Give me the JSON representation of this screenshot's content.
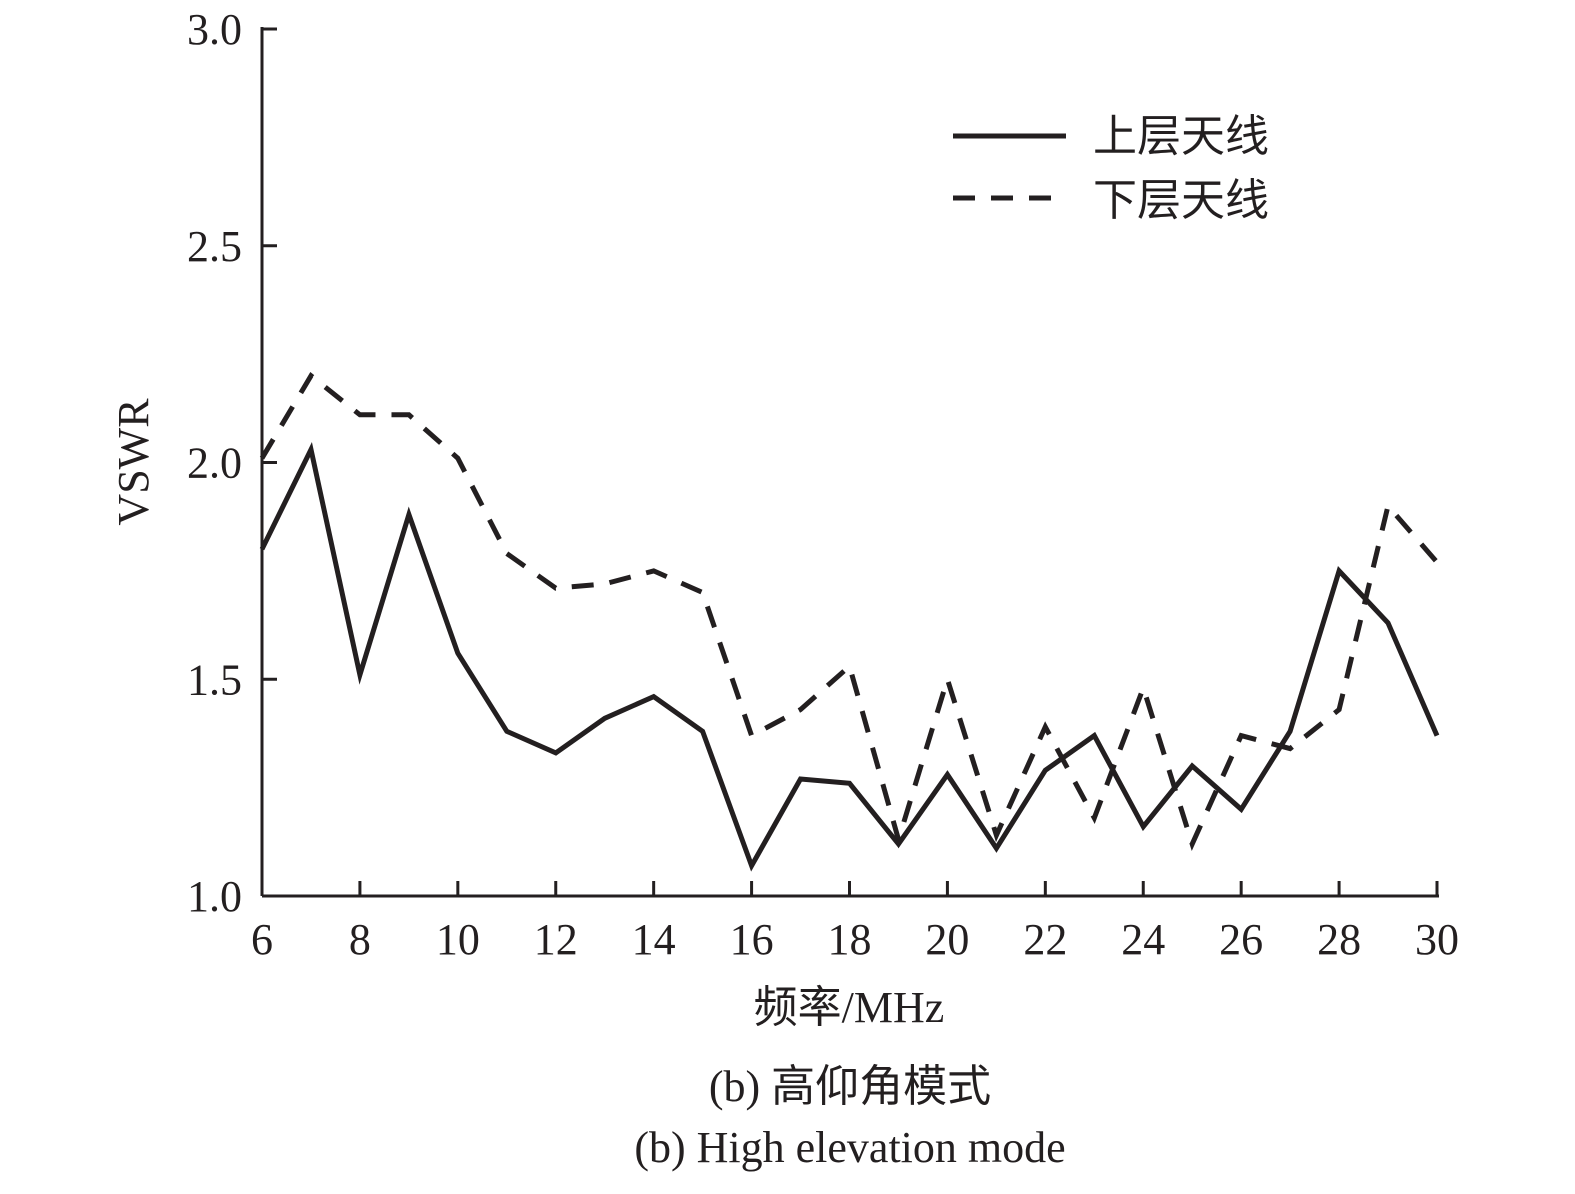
{
  "chart_data": {
    "type": "line",
    "title": "",
    "xlabel": "频率/MHz",
    "ylabel": "VSWR",
    "xlim": [
      6,
      30
    ],
    "ylim": [
      1.0,
      3.0
    ],
    "xticks": [
      6,
      8,
      10,
      12,
      14,
      16,
      18,
      20,
      22,
      24,
      26,
      28,
      30
    ],
    "xtick_labels": [
      "6",
      "8",
      "10",
      "12",
      "14",
      "16",
      "18",
      "20",
      "22",
      "24",
      "26",
      "28",
      "30"
    ],
    "yticks": [
      1.0,
      1.5,
      2.0,
      2.5,
      3.0
    ],
    "ytick_labels": [
      "1.0",
      "1.5",
      "2.0",
      "2.5",
      "3.0"
    ],
    "grid": false,
    "legend_position": "upper right",
    "x": [
      6,
      7,
      8,
      9,
      10,
      11,
      12,
      13,
      14,
      15,
      16,
      17,
      18,
      19,
      20,
      21,
      22,
      23,
      24,
      25,
      26,
      27,
      28,
      29,
      30
    ],
    "series": [
      {
        "name": "上层天线",
        "style": "solid",
        "color": "#231f20",
        "values": [
          1.8,
          2.03,
          1.51,
          1.88,
          1.56,
          1.38,
          1.33,
          1.41,
          1.46,
          1.38,
          1.07,
          1.27,
          1.26,
          1.12,
          1.28,
          1.11,
          1.29,
          1.37,
          1.16,
          1.3,
          1.2,
          1.38,
          1.75,
          1.63,
          1.37
        ]
      },
      {
        "name": "下层天线",
        "style": "dashed",
        "color": "#231f20",
        "values": [
          2.01,
          2.2,
          2.11,
          2.11,
          2.01,
          1.79,
          1.71,
          1.72,
          1.75,
          1.7,
          1.37,
          1.43,
          1.53,
          1.13,
          1.5,
          1.14,
          1.39,
          1.18,
          1.48,
          1.12,
          1.37,
          1.34,
          1.43,
          1.9,
          1.77
        ]
      }
    ],
    "captions": [
      "(b) 高仰角模式",
      "(b) High elevation mode"
    ]
  }
}
